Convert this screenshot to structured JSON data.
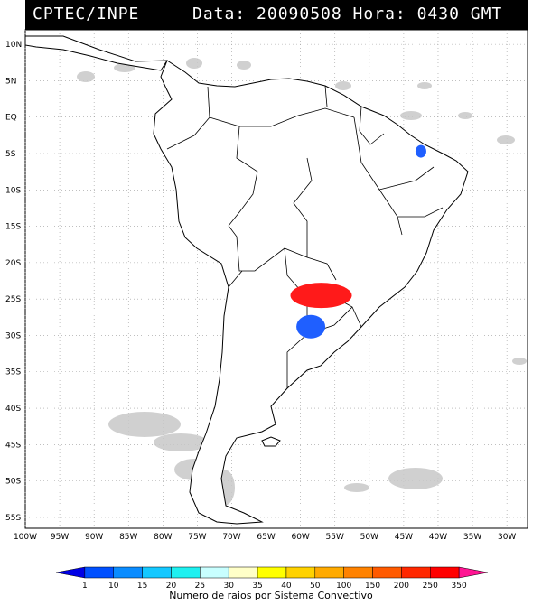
{
  "header": {
    "org": "CPTEC/INPE",
    "datetime": "Data: 20090508 Hora: 0430 GMT"
  },
  "map": {
    "lat_labels": [
      "10N",
      "5N",
      "EQ",
      "5S",
      "10S",
      "15S",
      "20S",
      "25S",
      "30S",
      "35S",
      "40S",
      "45S",
      "50S",
      "55S"
    ],
    "lon_labels": [
      "100W",
      "95W",
      "90W",
      "85W",
      "80W",
      "75W",
      "70W",
      "65W",
      "60W",
      "55W",
      "50W",
      "45W",
      "40W",
      "35W",
      "30W"
    ],
    "lat_range": [
      -56.5,
      12
    ],
    "lon_range": [
      -100,
      -27
    ],
    "land_fill": "#ffffff",
    "border_color": "#000000",
    "cloud_color": "#c8c8c8"
  },
  "lightning_systems": [
    {
      "lon": -57.0,
      "lat": -24.5,
      "color": "#ff1a1a",
      "class": "250-350"
    },
    {
      "lon": -58.5,
      "lat": -28.8,
      "color": "#1f5fff",
      "class": "10-15"
    },
    {
      "lon": -42.5,
      "lat": -4.7,
      "color": "#1f5fff",
      "class": "10-15"
    }
  ],
  "legend": {
    "labels": [
      "1",
      "10",
      "15",
      "20",
      "25",
      "30",
      "35",
      "40",
      "50",
      "100",
      "150",
      "200",
      "250",
      "350"
    ],
    "colors": [
      "#0000e6",
      "#0050ff",
      "#0a8cff",
      "#14c8ff",
      "#1ef0f0",
      "#c8ffff",
      "#ffffc8",
      "#ffff00",
      "#ffd200",
      "#ffaa00",
      "#ff8200",
      "#ff5a00",
      "#ff2800",
      "#ff0000",
      "#ff1493"
    ],
    "caption": "Numero de raios por Sistema Convectivo"
  }
}
